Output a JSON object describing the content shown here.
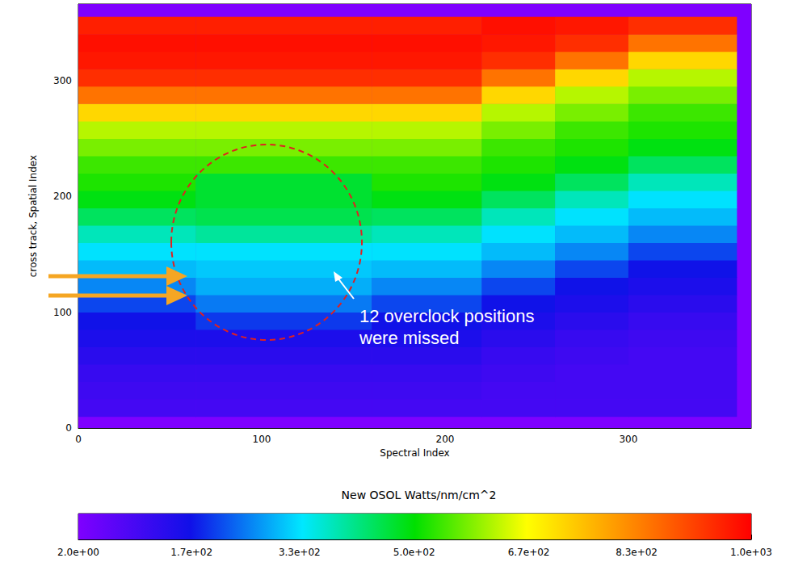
{
  "chart_data": {
    "type": "heatmap",
    "xlabel": "Spectral Index",
    "ylabel": "cross track, Spatial Index",
    "xlim": [
      0,
      367
    ],
    "xticks": [
      0,
      100,
      200,
      300
    ],
    "ylim": [
      0,
      366
    ],
    "yticks": [
      0,
      100,
      200,
      300
    ],
    "grid": false,
    "annotations": [
      "12 overclock positions were missed"
    ],
    "cells": {
      "fill_value": 2,
      "x_edges": [
        0,
        64,
        160,
        220,
        260,
        300,
        359
      ],
      "y_edges": [
        10,
        25,
        40,
        55,
        70,
        85,
        100,
        115,
        130,
        145,
        160,
        175,
        190,
        205,
        220,
        235,
        250,
        265,
        280,
        295,
        310,
        325,
        340,
        355
      ],
      "values": [
        [
          90,
          90,
          90,
          90,
          90,
          90
        ],
        [
          100,
          100,
          100,
          90,
          90,
          90
        ],
        [
          110,
          110,
          110,
          100,
          90,
          90
        ],
        [
          130,
          130,
          130,
          110,
          100,
          90
        ],
        [
          150,
          150,
          150,
          130,
          110,
          100
        ],
        [
          170,
          200,
          170,
          150,
          130,
          110
        ],
        [
          210,
          250,
          210,
          170,
          150,
          130
        ],
        [
          260,
          290,
          260,
          210,
          170,
          150
        ],
        [
          300,
          310,
          300,
          260,
          210,
          170
        ],
        [
          330,
          330,
          330,
          300,
          260,
          210
        ],
        [
          380,
          400,
          380,
          330,
          300,
          260
        ],
        [
          440,
          450,
          440,
          380,
          330,
          300
        ],
        [
          490,
          470,
          490,
          440,
          380,
          330
        ],
        [
          520,
          470,
          520,
          490,
          440,
          380
        ],
        [
          540,
          540,
          540,
          520,
          490,
          440
        ],
        [
          580,
          580,
          580,
          540,
          520,
          490
        ],
        [
          620,
          620,
          620,
          580,
          540,
          520
        ],
        [
          720,
          720,
          720,
          620,
          580,
          540
        ],
        [
          850,
          850,
          850,
          720,
          620,
          580
        ],
        [
          940,
          940,
          940,
          850,
          720,
          620
        ],
        [
          970,
          970,
          970,
          940,
          850,
          720
        ],
        [
          980,
          980,
          980,
          970,
          940,
          850
        ],
        [
          960,
          960,
          960,
          980,
          970,
          940
        ]
      ]
    },
    "colorbar": {
      "title": "New OSOL Watts/nm/cm^2",
      "range": [
        2,
        1000
      ],
      "ticks": [
        {
          "value": 2,
          "label": "2.0e+00"
        },
        {
          "value": 170,
          "label": "1.7e+02"
        },
        {
          "value": 330,
          "label": "3.3e+02"
        },
        {
          "value": 500,
          "label": "5.0e+02"
        },
        {
          "value": 670,
          "label": "6.7e+02"
        },
        {
          "value": 830,
          "label": "8.3e+02"
        },
        {
          "value": 1000,
          "label": "1.0e+03"
        }
      ]
    }
  }
}
